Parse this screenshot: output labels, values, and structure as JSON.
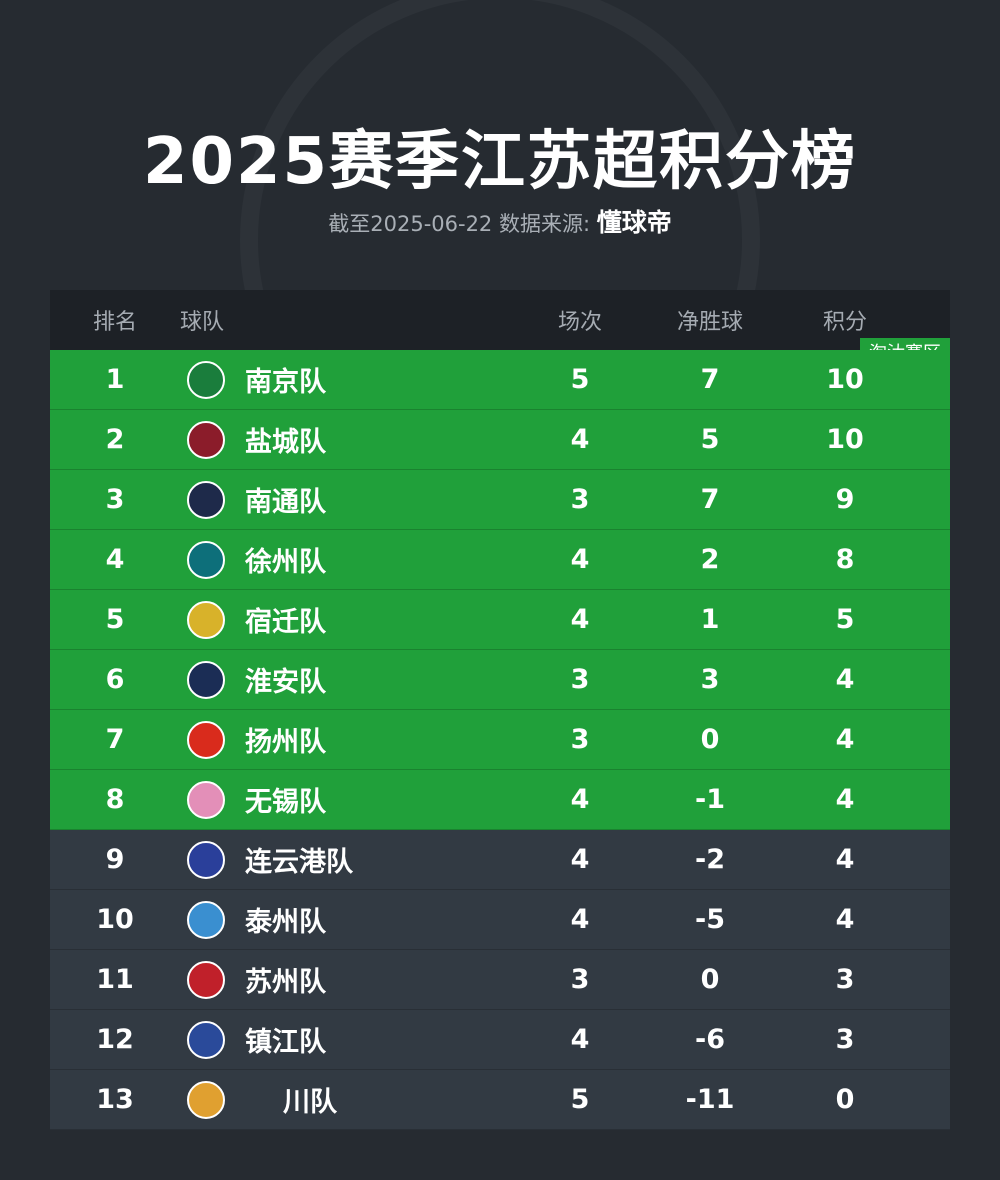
{
  "title": "2025赛季江苏超积分榜",
  "subtitle": "截至2025-06-22 数据来源:",
  "source": "懂球帝",
  "headers": {
    "rank": "排名",
    "team": "球队",
    "played": "场次",
    "goal_diff": "净胜球",
    "points": "积分"
  },
  "zone_label": "淘汰赛区",
  "colors": {
    "qualify": "#20a03a",
    "other": "#323a43"
  },
  "rows": [
    {
      "rank": "1",
      "team": "南京队",
      "played": "5",
      "gd": "7",
      "pts": "10",
      "logo": "#1a7d3c"
    },
    {
      "rank": "2",
      "team": "盐城队",
      "played": "4",
      "gd": "5",
      "pts": "10",
      "logo": "#8b1c2a"
    },
    {
      "rank": "3",
      "team": "南通队",
      "played": "3",
      "gd": "7",
      "pts": "9",
      "logo": "#1e2a4a"
    },
    {
      "rank": "4",
      "team": "徐州队",
      "played": "4",
      "gd": "2",
      "pts": "8",
      "logo": "#0d6f7a"
    },
    {
      "rank": "5",
      "team": "宿迁队",
      "played": "4",
      "gd": "1",
      "pts": "5",
      "logo": "#d8b22a"
    },
    {
      "rank": "6",
      "team": "淮安队",
      "played": "3",
      "gd": "3",
      "pts": "4",
      "logo": "#1b2d55"
    },
    {
      "rank": "7",
      "team": "扬州队",
      "played": "3",
      "gd": "0",
      "pts": "4",
      "logo": "#d92b1c"
    },
    {
      "rank": "8",
      "team": "无锡队",
      "played": "4",
      "gd": "-1",
      "pts": "4",
      "logo": "#e38fb8"
    },
    {
      "rank": "9",
      "team": "连云港队",
      "played": "4",
      "gd": "-2",
      "pts": "4",
      "logo": "#2a3f9a"
    },
    {
      "rank": "10",
      "team": "泰州队",
      "played": "4",
      "gd": "-5",
      "pts": "4",
      "logo": "#3a8fd0"
    },
    {
      "rank": "11",
      "team": "苏州队",
      "played": "3",
      "gd": "0",
      "pts": "3",
      "logo": "#c0202a"
    },
    {
      "rank": "12",
      "team": "镇江队",
      "played": "4",
      "gd": "-6",
      "pts": "3",
      "logo": "#2a4a9a"
    },
    {
      "rank": "13",
      "team": "川队",
      "played": "5",
      "gd": "-11",
      "pts": "0",
      "logo": "#e0a030"
    }
  ]
}
